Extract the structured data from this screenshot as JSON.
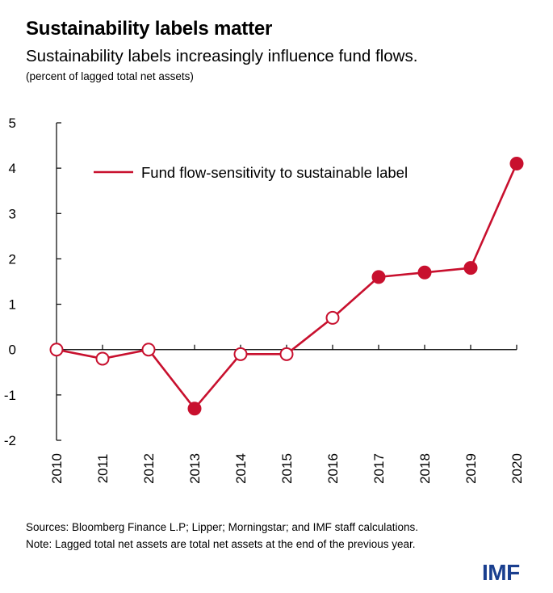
{
  "title": "Sustainability labels matter",
  "subtitle": "Sustainability labels increasingly influence fund flows.",
  "unit_note": "(percent of lagged total net assets)",
  "sources": "Sources: Bloomberg Finance L.P; Lipper; Morningstar; and IMF staff calculations.",
  "note": "Note: Lagged total net assets are total net assets at the end of the previous year.",
  "logo": "IMF",
  "colors": {
    "series": "#c8102e",
    "axis": "#000000"
  },
  "chart_data": {
    "type": "line",
    "title": "Sustainability labels matter",
    "subtitle": "Sustainability labels increasingly influence fund flows.",
    "xlabel": "",
    "ylabel": "(percent of lagged total net assets)",
    "ylim": [
      -2,
      5
    ],
    "yticks": [
      -2,
      -1,
      0,
      1,
      2,
      3,
      4,
      5
    ],
    "grid": false,
    "legend_position": "top-center",
    "x": [
      "2010",
      "2011",
      "2012",
      "2013",
      "2014",
      "2015",
      "2016",
      "2017",
      "2018",
      "2019",
      "2020"
    ],
    "series": [
      {
        "name": "Fund flow-sensitivity to sustainable label",
        "values": [
          0,
          -0.2,
          0,
          -1.3,
          -0.1,
          -0.1,
          0.7,
          1.6,
          1.7,
          1.8,
          4.1
        ],
        "significant": [
          false,
          false,
          false,
          true,
          false,
          false,
          false,
          true,
          true,
          true,
          true
        ]
      }
    ]
  }
}
